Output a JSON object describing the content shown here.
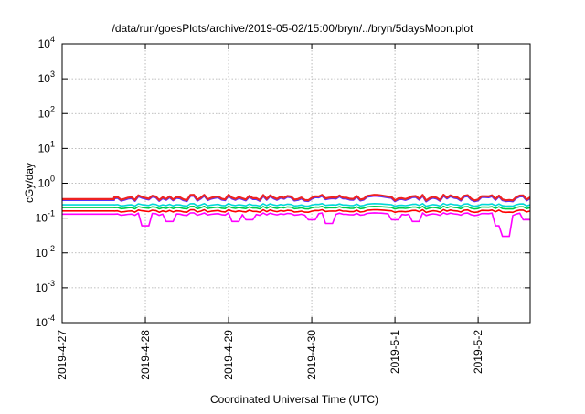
{
  "chart_data": {
    "type": "line",
    "title": "/data/run/goesPlots/archive/2019-05-02/15:00/bryn/../bryn/5daysMoon.plot",
    "xlabel": "Coordinated Universal Time (UTC)",
    "ylabel": "cGy/day",
    "y_scale": "log",
    "ylim": [
      0.0001,
      10000
    ],
    "y_ticks": [
      {
        "value": 0.0001,
        "base": "10",
        "exp": "-4"
      },
      {
        "value": 0.001,
        "base": "10",
        "exp": "-3"
      },
      {
        "value": 0.01,
        "base": "10",
        "exp": "-2"
      },
      {
        "value": 0.1,
        "base": "10",
        "exp": "-1"
      },
      {
        "value": 1,
        "base": "10",
        "exp": "0"
      },
      {
        "value": 10,
        "base": "10",
        "exp": "1"
      },
      {
        "value": 100,
        "base": "10",
        "exp": "2"
      },
      {
        "value": 1000,
        "base": "10",
        "exp": "3"
      },
      {
        "value": 10000,
        "base": "10",
        "exp": "4"
      }
    ],
    "xlim": [
      "2019-04-27 00:00",
      "2019-05-02 15:00"
    ],
    "x_ticks": [
      {
        "value": "2019-04-27",
        "label": "2019-4-27"
      },
      {
        "value": "2019-04-28",
        "label": "2019-4-28"
      },
      {
        "value": "2019-04-29",
        "label": "2019-4-29"
      },
      {
        "value": "2019-04-30",
        "label": "2019-4-30"
      },
      {
        "value": "2019-05-01",
        "label": "2019-5-1"
      },
      {
        "value": "2019-05-02",
        "label": "2019-5-2"
      }
    ],
    "grid": true,
    "legend": "none",
    "series": [
      {
        "color": "#ff00ff",
        "baseline": 0.13,
        "dips": [
          [
            "2019-04-28 00:00",
            0.06
          ],
          [
            "2019-04-28 07:00",
            0.08
          ],
          [
            "2019-04-29 02:00",
            0.08
          ],
          [
            "2019-04-29 06:00",
            0.09
          ],
          [
            "2019-04-30 00:00",
            0.09
          ],
          [
            "2019-04-30 05:00",
            0.07
          ],
          [
            "2019-05-01 00:00",
            0.09
          ],
          [
            "2019-05-01 06:00",
            0.08
          ],
          [
            "2019-05-02 06:00",
            0.06
          ],
          [
            "2019-05-02 08:00",
            0.03
          ],
          [
            "2019-05-02 14:00",
            0.09
          ]
        ]
      },
      {
        "color": "#ff0000",
        "baseline": 0.16,
        "dips": []
      },
      {
        "color": "#00cc44",
        "baseline": 0.2,
        "dips": []
      },
      {
        "color": "#00d8d8",
        "baseline": 0.24,
        "dips": []
      },
      {
        "color": "#8800ff",
        "baseline": 0.33,
        "dips": []
      },
      {
        "color": "#2266ff",
        "baseline": 0.34,
        "dips": []
      },
      {
        "color": "#ee2222",
        "baseline": 0.35,
        "dips": []
      }
    ],
    "data_start": "2019-04-27 15:00",
    "peak_level": 0.4
  }
}
